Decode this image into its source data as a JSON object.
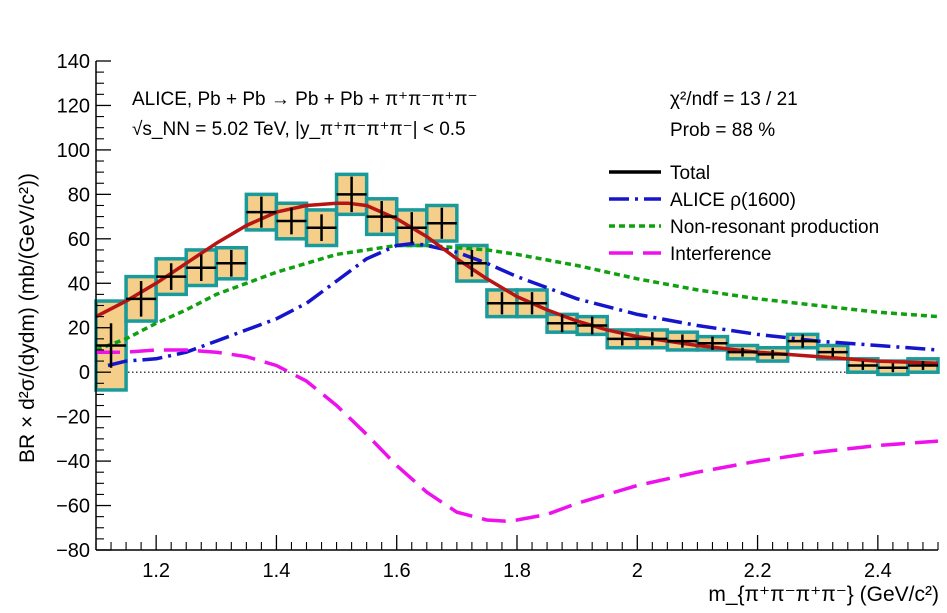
{
  "chart_data": {
    "type": "line",
    "title": "",
    "xlabel": "m_{π⁺π⁻π⁺π⁻} (GeV/c²)",
    "ylabel": "BR × d²σ/(dydm) (mb/(GeV/c²))",
    "xlim": [
      1.1,
      2.5
    ],
    "ylim": [
      -80,
      140
    ],
    "xticks": [
      1.2,
      1.4,
      1.6,
      1.8,
      2,
      2.2,
      2.4
    ],
    "yticks": [
      -80,
      -60,
      -40,
      -20,
      0,
      20,
      40,
      60,
      80,
      100,
      120,
      140
    ],
    "grid": false,
    "legend_position": "right",
    "annotations": {
      "experiment_line1": "ALICE, Pb + Pb → Pb + Pb + π⁺π⁻π⁺π⁻",
      "experiment_line2": "√s_NN = 5.02 TeV, |y_π⁺π⁻π⁺π⁻| < 0.5",
      "chi2": "χ²/ndf = 13 / 21",
      "prob": "Prob = 88 %"
    },
    "data_points": {
      "x": [
        1.125,
        1.175,
        1.225,
        1.275,
        1.325,
        1.375,
        1.425,
        1.475,
        1.525,
        1.575,
        1.625,
        1.675,
        1.725,
        1.775,
        1.825,
        1.875,
        1.925,
        1.975,
        2.025,
        2.075,
        2.125,
        2.175,
        2.225,
        2.275,
        2.325,
        2.375,
        2.425,
        2.475
      ],
      "y": [
        12,
        33,
        43,
        47,
        49,
        72,
        68,
        65,
        80,
        70,
        65,
        67,
        49,
        31,
        31,
        22,
        21,
        15,
        15,
        14,
        13,
        9,
        8,
        14,
        9,
        3,
        2,
        3
      ],
      "stat_err": [
        10,
        8,
        6,
        6,
        6,
        7,
        6,
        6,
        8,
        7,
        7,
        7,
        6,
        5,
        5,
        4,
        4,
        3,
        3,
        3,
        3,
        2,
        2,
        3,
        2,
        2,
        2,
        2
      ],
      "sys_err": [
        20,
        10,
        8,
        8,
        7,
        8,
        8,
        8,
        9,
        8,
        8,
        8,
        8,
        6,
        6,
        4,
        4,
        4,
        4,
        4,
        3,
        3,
        3,
        3,
        3,
        3,
        3,
        3
      ],
      "color": "#000000",
      "box_edge_color": "#1a9a9a",
      "box_fill_color": "#f5cf8a"
    },
    "series": [
      {
        "name": "Total",
        "color": "#b81414",
        "legend_color": "#000000",
        "style": "solid",
        "x": [
          1.1,
          1.15,
          1.2,
          1.25,
          1.3,
          1.35,
          1.4,
          1.45,
          1.5,
          1.52,
          1.55,
          1.6,
          1.65,
          1.7,
          1.75,
          1.8,
          1.85,
          1.9,
          1.95,
          2.0,
          2.1,
          2.2,
          2.3,
          2.4,
          2.5
        ],
        "y": [
          25,
          32,
          40,
          49,
          58,
          66,
          72,
          75,
          76,
          76,
          75,
          69,
          61,
          51,
          42,
          34,
          28,
          23,
          19,
          16,
          12,
          9,
          7,
          5,
          4
        ]
      },
      {
        "name": "ALICE ρ(1600)",
        "color": "#1515cc",
        "style": "dashdot",
        "x": [
          1.12,
          1.15,
          1.2,
          1.25,
          1.3,
          1.35,
          1.4,
          1.45,
          1.5,
          1.55,
          1.6,
          1.63,
          1.65,
          1.7,
          1.75,
          1.8,
          1.9,
          2.0,
          2.1,
          2.2,
          2.3,
          2.4,
          2.5
        ],
        "y": [
          3,
          5,
          6,
          9,
          14,
          19,
          24,
          31,
          41,
          51,
          57,
          58,
          57,
          54,
          49,
          43,
          33,
          26,
          21,
          17,
          14,
          12,
          10
        ]
      },
      {
        "name": "Non-resonant production",
        "color": "#10a010",
        "style": "dotted",
        "x": [
          1.1,
          1.15,
          1.2,
          1.25,
          1.3,
          1.35,
          1.4,
          1.45,
          1.5,
          1.55,
          1.6,
          1.65,
          1.7,
          1.75,
          1.8,
          1.9,
          2.0,
          2.1,
          2.2,
          2.3,
          2.4,
          2.5
        ],
        "y": [
          10,
          15,
          22,
          28,
          35,
          40,
          45,
          49,
          53,
          55,
          57,
          57,
          56,
          55,
          53,
          48,
          42,
          37,
          33,
          30,
          27,
          25
        ]
      },
      {
        "name": "Interference",
        "color": "#ee11ee",
        "style": "dashed",
        "x": [
          1.1,
          1.15,
          1.2,
          1.25,
          1.3,
          1.35,
          1.4,
          1.45,
          1.5,
          1.55,
          1.6,
          1.65,
          1.7,
          1.75,
          1.78,
          1.8,
          1.85,
          1.9,
          2.0,
          2.1,
          2.2,
          2.3,
          2.4,
          2.5
        ],
        "y": [
          9,
          9,
          10,
          10,
          9,
          7,
          3,
          -4,
          -15,
          -28,
          -42,
          -54,
          -63,
          -66.5,
          -67,
          -66.5,
          -64,
          -59,
          -51,
          -45,
          -40,
          -36,
          -33,
          -31
        ]
      }
    ]
  }
}
